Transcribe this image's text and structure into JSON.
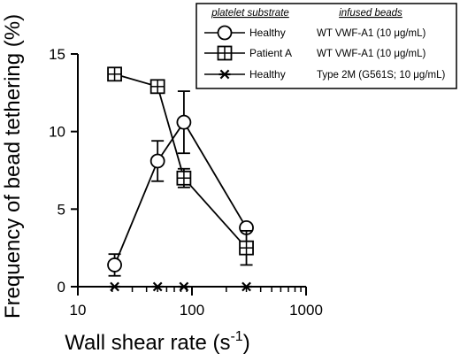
{
  "chart_data": {
    "type": "line",
    "title": "",
    "xlabel": "Wall shear rate (s",
    "xlabel_sup": "-1",
    "xlabel_close": ")",
    "ylabel": "Frequency of bead tethering (%)",
    "xscale": "log",
    "xlim": [
      10,
      1000
    ],
    "ylim": [
      0,
      15
    ],
    "xticks": [
      10,
      100,
      1000
    ],
    "xtick_labels": [
      "10",
      "100",
      "1000"
    ],
    "yticks": [
      0,
      5,
      10,
      15
    ],
    "ytick_labels": [
      "0",
      "5",
      "10",
      "15"
    ],
    "grid": false,
    "legend": {
      "placement": "top-right",
      "header_substrate": "platelet substrate",
      "header_beads": "infused beads"
    },
    "series": [
      {
        "name": "Healthy",
        "beads": "WT VWF-A1 (10 μg/mL)",
        "marker": "circle",
        "x": [
          21,
          50,
          85,
          300
        ],
        "y": [
          1.4,
          8.1,
          10.6,
          3.8
        ],
        "err": [
          0.7,
          1.3,
          2.0,
          0
        ]
      },
      {
        "name": "Patient A",
        "beads": "WT VWF-A1 (10 μg/mL)",
        "marker": "square-plus",
        "x": [
          21,
          50,
          85,
          300
        ],
        "y": [
          13.7,
          12.9,
          7.0,
          2.5
        ],
        "err": [
          0,
          0,
          0.6,
          1.1
        ]
      },
      {
        "name": "Healthy",
        "beads": "Type 2M (G561S; 10 μg/mL)",
        "marker": "asterisk",
        "x": [
          21,
          50,
          85,
          300
        ],
        "y": [
          0,
          0,
          0,
          0
        ],
        "err": [
          0,
          0,
          0,
          0
        ]
      }
    ]
  }
}
